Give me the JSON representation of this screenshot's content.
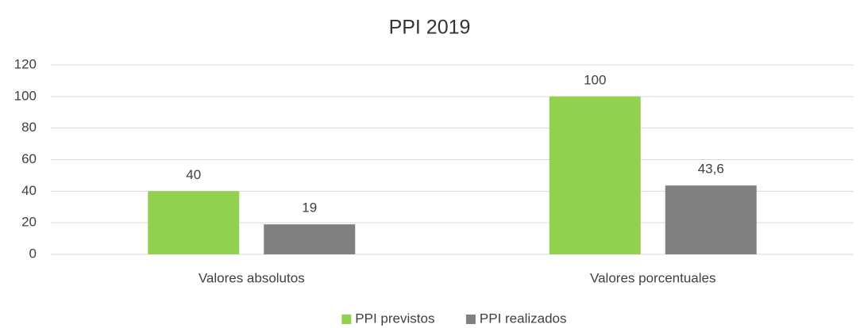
{
  "chart_data": {
    "type": "bar",
    "title": "PPI 2019",
    "categories": [
      "Valores absolutos",
      "Valores porcentuales"
    ],
    "series": [
      {
        "name": "PPI previstos",
        "color": "#92d050",
        "values": [
          40,
          100
        ]
      },
      {
        "name": "PPI realizados",
        "color": "#808080",
        "values": [
          19,
          43.6
        ],
        "value_labels": [
          "19",
          "43,6"
        ]
      }
    ],
    "ylim": [
      0,
      120
    ],
    "yticks": [
      0,
      20,
      40,
      60,
      80,
      100,
      120
    ],
    "grid": true,
    "legend": "bottom"
  }
}
